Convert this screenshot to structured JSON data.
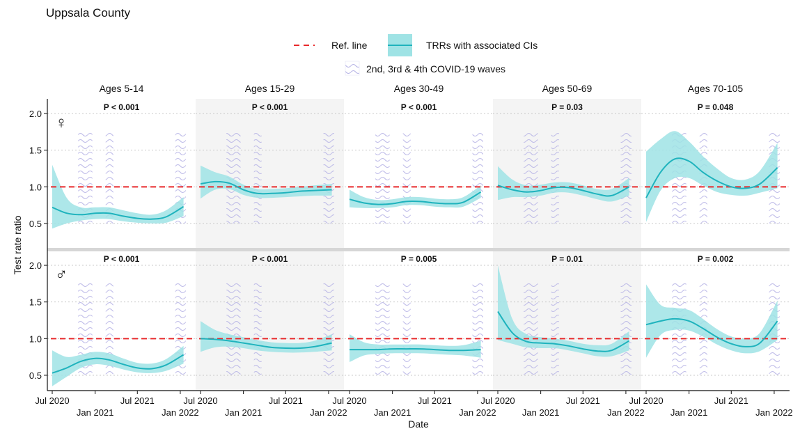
{
  "colors": {
    "background": "#ffffff",
    "panel_shade": "#f4f4f4",
    "ref_line": "#e8292b",
    "trr_line": "#1fb3bd",
    "ci_band": "#9fe3e5",
    "wave": "#b9b6e6",
    "grid": "#c8c8c8",
    "separator": "#d6d6d6",
    "text": "#111111"
  },
  "chart_data": {
    "type": "line",
    "title": "Uppsala County",
    "xlabel": "Date",
    "ylabel": "Test rate ratio",
    "ylim": [
      0.3,
      2.2
    ],
    "yticks": [
      "0.5",
      "1.0",
      "1.5",
      "2.0"
    ],
    "ytick_values": [
      0.5,
      1.0,
      1.5,
      2.0
    ],
    "x_domain": [
      "2020-07-01",
      "2022-02-15"
    ],
    "xticks_top": [
      {
        "label": "Jul 2020",
        "date": "2020-07-01"
      },
      {
        "label": "Jul 2021",
        "date": "2021-07-01"
      }
    ],
    "xticks_bottom": [
      {
        "label": "Jan 2021",
        "date": "2021-01-01"
      },
      {
        "label": "Jan 2022",
        "date": "2022-01-01"
      }
    ],
    "reference_line": 1.0,
    "grid": true,
    "legend": {
      "placement": "top",
      "ref_label": "Ref. line",
      "trr_label": "TRRs with associated CIs",
      "wave_label": "2nd, 3rd & 4th COVID-19 waves"
    },
    "waves": [
      {
        "start": "2020-10-20",
        "end": "2020-12-20"
      },
      {
        "start": "2021-02-15",
        "end": "2021-03-20"
      },
      {
        "start": "2021-12-10",
        "end": "2022-01-25"
      }
    ],
    "columns": [
      "Ages 5-14",
      "Ages 15-29",
      "Ages 30-49",
      "Ages 50-69",
      "Ages 70-105"
    ],
    "rows": [
      {
        "sex": "female",
        "symbol": "♀"
      },
      {
        "sex": "male",
        "symbol": "♂"
      }
    ],
    "panels": [
      {
        "row": 0,
        "col": 0,
        "p": "P < 0.001",
        "x": [
          "2020-07-01",
          "2020-09-01",
          "2020-11-01",
          "2021-01-01",
          "2021-03-01",
          "2021-05-01",
          "2021-07-01",
          "2021-09-01",
          "2021-11-01",
          "2022-01-15"
        ],
        "y": [
          0.72,
          0.64,
          0.62,
          0.64,
          0.64,
          0.6,
          0.57,
          0.56,
          0.59,
          0.73
        ],
        "lo": [
          0.43,
          0.5,
          0.54,
          0.56,
          0.56,
          0.53,
          0.51,
          0.5,
          0.51,
          0.6
        ],
        "hi": [
          1.3,
          0.85,
          0.72,
          0.72,
          0.72,
          0.68,
          0.64,
          0.62,
          0.68,
          0.86
        ]
      },
      {
        "row": 0,
        "col": 1,
        "p": "P < 0.001",
        "x": [
          "2020-07-01",
          "2020-09-01",
          "2020-11-01",
          "2021-01-01",
          "2021-03-01",
          "2021-05-01",
          "2021-07-01",
          "2021-09-01",
          "2021-11-01",
          "2022-01-15"
        ],
        "y": [
          1.04,
          1.07,
          1.05,
          0.96,
          0.91,
          0.91,
          0.92,
          0.94,
          0.95,
          0.96
        ],
        "lo": [
          0.84,
          0.96,
          0.97,
          0.89,
          0.85,
          0.85,
          0.86,
          0.87,
          0.88,
          0.88
        ],
        "hi": [
          1.29,
          1.2,
          1.14,
          1.03,
          0.97,
          0.97,
          0.98,
          1.0,
          1.02,
          1.04
        ]
      },
      {
        "row": 0,
        "col": 2,
        "p": "P < 0.001",
        "x": [
          "2020-07-01",
          "2020-09-01",
          "2020-11-01",
          "2021-01-01",
          "2021-03-01",
          "2021-05-01",
          "2021-07-01",
          "2021-09-01",
          "2021-11-01",
          "2022-01-15"
        ],
        "y": [
          0.83,
          0.78,
          0.76,
          0.77,
          0.8,
          0.8,
          0.78,
          0.77,
          0.79,
          0.93
        ],
        "lo": [
          0.72,
          0.71,
          0.71,
          0.72,
          0.75,
          0.75,
          0.73,
          0.72,
          0.73,
          0.85
        ],
        "hi": [
          0.96,
          0.86,
          0.82,
          0.83,
          0.86,
          0.86,
          0.84,
          0.83,
          0.86,
          1.02
        ]
      },
      {
        "row": 0,
        "col": 3,
        "p": "P = 0.03",
        "x": [
          "2020-07-01",
          "2020-09-01",
          "2020-11-01",
          "2021-01-01",
          "2021-03-01",
          "2021-05-01",
          "2021-07-01",
          "2021-09-01",
          "2021-11-01",
          "2022-01-15"
        ],
        "y": [
          1.02,
          0.96,
          0.93,
          0.95,
          0.99,
          0.99,
          0.95,
          0.9,
          0.88,
          1.0
        ],
        "lo": [
          0.82,
          0.86,
          0.86,
          0.88,
          0.92,
          0.92,
          0.88,
          0.83,
          0.8,
          0.88
        ],
        "hi": [
          1.28,
          1.1,
          1.02,
          1.03,
          1.06,
          1.06,
          1.02,
          0.97,
          0.97,
          1.12
        ]
      },
      {
        "row": 0,
        "col": 4,
        "p": "P = 0.048",
        "x": [
          "2020-07-01",
          "2020-09-01",
          "2020-11-01",
          "2021-01-01",
          "2021-03-01",
          "2021-05-01",
          "2021-07-01",
          "2021-09-01",
          "2021-11-01",
          "2022-01-15"
        ],
        "y": [
          0.85,
          1.2,
          1.38,
          1.35,
          1.2,
          1.08,
          1.0,
          0.98,
          1.04,
          1.26
        ],
        "lo": [
          0.52,
          0.95,
          1.12,
          1.12,
          1.02,
          0.93,
          0.89,
          0.88,
          0.92,
          0.98
        ],
        "hi": [
          1.48,
          1.65,
          1.76,
          1.62,
          1.42,
          1.25,
          1.12,
          1.1,
          1.22,
          1.6
        ]
      },
      {
        "row": 1,
        "col": 0,
        "p": "P < 0.001",
        "x": [
          "2020-07-01",
          "2020-09-01",
          "2020-11-01",
          "2021-01-01",
          "2021-03-01",
          "2021-05-01",
          "2021-07-01",
          "2021-09-01",
          "2021-11-01",
          "2022-01-15"
        ],
        "y": [
          0.53,
          0.6,
          0.69,
          0.73,
          0.71,
          0.65,
          0.6,
          0.59,
          0.64,
          0.78
        ],
        "lo": [
          0.35,
          0.48,
          0.6,
          0.65,
          0.63,
          0.58,
          0.54,
          0.53,
          0.56,
          0.66
        ],
        "hi": [
          0.84,
          0.75,
          0.78,
          0.82,
          0.8,
          0.73,
          0.67,
          0.66,
          0.72,
          0.9
        ]
      },
      {
        "row": 1,
        "col": 1,
        "p": "P < 0.001",
        "x": [
          "2020-07-01",
          "2020-09-01",
          "2020-11-01",
          "2021-01-01",
          "2021-03-01",
          "2021-05-01",
          "2021-07-01",
          "2021-09-01",
          "2021-11-01",
          "2022-01-15"
        ],
        "y": [
          1.0,
          0.99,
          0.97,
          0.94,
          0.91,
          0.88,
          0.87,
          0.87,
          0.89,
          0.94
        ],
        "lo": [
          0.82,
          0.88,
          0.89,
          0.87,
          0.84,
          0.82,
          0.81,
          0.81,
          0.82,
          0.84
        ],
        "hi": [
          1.24,
          1.12,
          1.06,
          1.02,
          0.98,
          0.95,
          0.94,
          0.94,
          0.97,
          1.06
        ]
      },
      {
        "row": 1,
        "col": 2,
        "p": "P = 0.005",
        "x": [
          "2020-07-01",
          "2020-09-01",
          "2020-11-01",
          "2021-01-01",
          "2021-03-01",
          "2021-05-01",
          "2021-07-01",
          "2021-09-01",
          "2021-11-01",
          "2022-01-15"
        ],
        "y": [
          0.85,
          0.85,
          0.85,
          0.86,
          0.86,
          0.86,
          0.85,
          0.84,
          0.84,
          0.85
        ],
        "lo": [
          0.68,
          0.77,
          0.79,
          0.8,
          0.8,
          0.8,
          0.79,
          0.78,
          0.77,
          0.74
        ],
        "hi": [
          1.06,
          0.95,
          0.92,
          0.92,
          0.92,
          0.92,
          0.91,
          0.9,
          0.91,
          0.97
        ]
      },
      {
        "row": 1,
        "col": 3,
        "p": "P = 0.01",
        "x": [
          "2020-07-01",
          "2020-09-01",
          "2020-11-01",
          "2021-01-01",
          "2021-03-01",
          "2021-05-01",
          "2021-07-01",
          "2021-09-01",
          "2021-11-01",
          "2022-01-15"
        ],
        "y": [
          1.37,
          1.08,
          0.96,
          0.94,
          0.93,
          0.9,
          0.86,
          0.83,
          0.84,
          0.97
        ],
        "lo": [
          0.98,
          0.93,
          0.88,
          0.87,
          0.87,
          0.84,
          0.8,
          0.76,
          0.76,
          0.84
        ],
        "hi": [
          2.0,
          1.27,
          1.06,
          1.02,
          1.0,
          0.97,
          0.93,
          0.91,
          0.93,
          1.1
        ]
      },
      {
        "row": 1,
        "col": 4,
        "p": "P = 0.002",
        "x": [
          "2020-07-01",
          "2020-09-01",
          "2020-11-01",
          "2021-01-01",
          "2021-03-01",
          "2021-05-01",
          "2021-07-01",
          "2021-09-01",
          "2021-11-01",
          "2022-01-15"
        ],
        "y": [
          1.19,
          1.24,
          1.27,
          1.24,
          1.14,
          1.02,
          0.93,
          0.89,
          0.94,
          1.24
        ],
        "lo": [
          0.74,
          1.05,
          1.12,
          1.11,
          1.03,
          0.92,
          0.84,
          0.8,
          0.83,
          0.98
        ],
        "hi": [
          1.74,
          1.46,
          1.42,
          1.39,
          1.27,
          1.13,
          1.03,
          1.0,
          1.08,
          1.52
        ]
      }
    ]
  }
}
